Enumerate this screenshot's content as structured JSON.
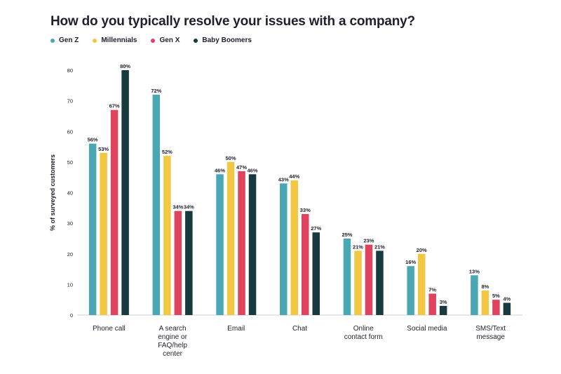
{
  "chart_data": {
    "type": "bar",
    "title": "How do you typically resolve your issues with a company?",
    "xlabel": "",
    "ylabel": "% of surveyed customers",
    "ylim": [
      0,
      80
    ],
    "yticks": [
      "0",
      "10",
      "20",
      "30",
      "40",
      "50",
      "60",
      "70",
      "80"
    ],
    "grid": false,
    "legend_position": "top-left",
    "categories": [
      [
        "Phone call"
      ],
      [
        "A search",
        "engine or",
        "FAQ/help",
        "center"
      ],
      [
        "Email"
      ],
      [
        "Chat"
      ],
      [
        "Online",
        "contact form"
      ],
      [
        "Social media"
      ],
      [
        "SMS/Text",
        "message"
      ]
    ],
    "series": [
      {
        "name": "Gen Z",
        "color": "#4aa8b5",
        "values": [
          56,
          72,
          46,
          43,
          25,
          16,
          13
        ],
        "labels": [
          "56%",
          "72%",
          "46%",
          "43%",
          "25%",
          "16%",
          "13%"
        ]
      },
      {
        "name": "Millennials",
        "color": "#f2c744",
        "values": [
          53,
          52,
          50,
          44,
          21,
          20,
          8
        ],
        "labels": [
          "53%",
          "52%",
          "50%",
          "44%",
          "21%",
          "20%",
          "8%"
        ]
      },
      {
        "name": "Gen X",
        "color": "#e0435e",
        "values": [
          67,
          34,
          47,
          33,
          23,
          7,
          5
        ],
        "labels": [
          "67%",
          "34%",
          "47%",
          "33%",
          "23%",
          "7%",
          "5%"
        ]
      },
      {
        "name": "Baby Boomers",
        "color": "#163a3d",
        "values": [
          80,
          34,
          46,
          27,
          21,
          3,
          4
        ],
        "labels": [
          "80%",
          "34%",
          "46%",
          "27%",
          "21%",
          "3%",
          "4%"
        ]
      }
    ]
  }
}
